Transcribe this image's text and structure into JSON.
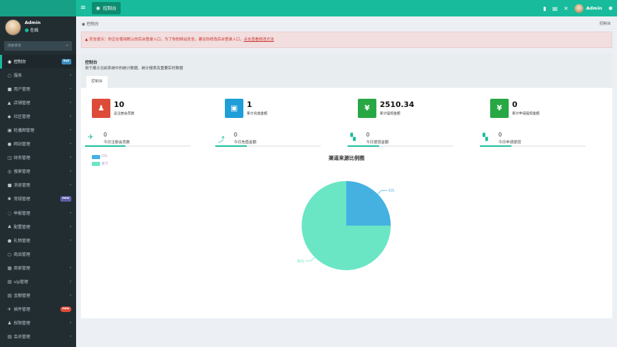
{
  "header": {
    "tab_label": "控制台",
    "user": "Admin"
  },
  "sidebar": {
    "user_name": "Admin",
    "user_status": "在线",
    "search_placeholder": "搜索菜单",
    "items": [
      {
        "label": "控制台",
        "icon": "dashboard-icon",
        "glyph": "◉",
        "badge": "hot",
        "badge_color": "blue",
        "active": true
      },
      {
        "label": "服务",
        "icon": "circle-icon",
        "glyph": "○",
        "chevron": true
      },
      {
        "label": "用户管理",
        "icon": "user-icon",
        "glyph": "■",
        "chevron": true
      },
      {
        "label": "店铺管理",
        "icon": "bank-icon",
        "glyph": "▲",
        "chevron": true
      },
      {
        "label": "社区管理",
        "icon": "users-icon",
        "glyph": "◆",
        "chevron": true
      },
      {
        "label": "轮播图管理",
        "icon": "image-icon",
        "glyph": "▣",
        "chevron": true
      },
      {
        "label": "网站管理",
        "icon": "globe-icon",
        "glyph": "●",
        "chevron": true
      },
      {
        "label": "财务管理",
        "icon": "money-icon",
        "glyph": "◫",
        "chevron": true
      },
      {
        "label": "搜索管理",
        "icon": "search-icon",
        "glyph": "◎",
        "chevron": true
      },
      {
        "label": "消息管理",
        "icon": "message-icon",
        "glyph": "■",
        "chevron": true
      },
      {
        "label": "常规管理",
        "icon": "cogs-icon",
        "glyph": "✱",
        "badge": "new",
        "badge_color": "purple"
      },
      {
        "label": "举报管理",
        "icon": "power-icon",
        "glyph": "◌",
        "chevron": true
      },
      {
        "label": "配置管理",
        "icon": "sitemap-icon",
        "glyph": "♣",
        "chevron": true
      },
      {
        "label": "礼物管理",
        "icon": "gift-icon",
        "glyph": "●",
        "chevron": true
      },
      {
        "label": "商品管理",
        "icon": "circle-icon",
        "glyph": "○",
        "chevron": false
      },
      {
        "label": "商家管理",
        "icon": "list-icon",
        "glyph": "▦",
        "chevron": true
      },
      {
        "label": "vip管理",
        "icon": "list-icon",
        "glyph": "▤",
        "chevron": true
      },
      {
        "label": "金额管理",
        "icon": "list-icon",
        "glyph": "▤",
        "chevron": true
      },
      {
        "label": "插件管理",
        "icon": "rocket-icon",
        "glyph": "✈",
        "badge": "new",
        "badge_color": "red"
      },
      {
        "label": "权限管理",
        "icon": "group-icon",
        "glyph": "♟",
        "chevron": true
      },
      {
        "label": "会员管理",
        "icon": "list-icon",
        "glyph": "▤",
        "chevron": true
      }
    ]
  },
  "breadcrumb": {
    "current": "控制台",
    "right": "控制台"
  },
  "alert": {
    "text": "安全提示：你正在使用默认的后台登录入口，为了你的网站安全，建议你修改后台登录入口，",
    "link": "点击查看修改方法"
  },
  "panel": {
    "title": "控制台",
    "desc": "用于展示当前系统中的统计数据、统计报表及重要实时数据",
    "tab": "控制台"
  },
  "stats": [
    {
      "value": "10",
      "label": "总注册会员数",
      "color": "#dd4b39",
      "icon": "users-icon",
      "glyph": "♟"
    },
    {
      "value": "1",
      "label": "累计充值金额",
      "color": "#1f9ed8",
      "icon": "shopping-bag-icon",
      "glyph": "▣"
    },
    {
      "value": "2510.34",
      "label": "累计提现金额",
      "color": "#28a745",
      "icon": "yen-icon",
      "glyph": "¥"
    },
    {
      "value": "0",
      "label": "累计申请提现金额",
      "color": "#28a745",
      "icon": "yen-icon",
      "glyph": "¥"
    }
  ],
  "mini_stats": [
    {
      "value": "0",
      "label": "今日注册会员数",
      "icon": "rocket-icon",
      "glyph": "✈",
      "progress": 0.38
    },
    {
      "value": "0",
      "label": "今日充值金额",
      "icon": "line-chart-icon",
      "glyph": "⤴",
      "progress": 0.3
    },
    {
      "value": "0",
      "label": "今日提现金额",
      "icon": "cart-icon",
      "glyph": "▚",
      "progress": 0.3
    },
    {
      "value": "0",
      "label": "今日申请提现",
      "icon": "cart-icon",
      "glyph": "▚",
      "progress": 0.3
    }
  ],
  "chart_data": {
    "type": "pie",
    "title": "渠道来源比例图",
    "legend_position": "top-left",
    "slices": [
      {
        "name": "IOS",
        "value": 1,
        "color": "#45b1e1"
      },
      {
        "name": "官方",
        "value": 3,
        "color": "#6ae6c5"
      }
    ]
  }
}
